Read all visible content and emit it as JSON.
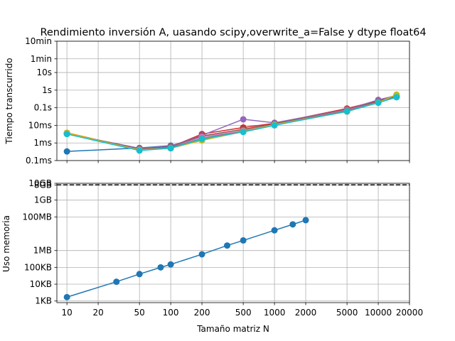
{
  "chart_data": [
    {
      "type": "line",
      "title": "Rendimiento inversión A, uasando scipy,overwrite_a=False y dtype float64",
      "xlabel": "",
      "ylabel": "Tiempo transcurrido",
      "xscale": "log",
      "yscale": "log",
      "xlim": [
        8,
        20000
      ],
      "ylim": [
        0.0001,
        600
      ],
      "grid": true,
      "yticks": [
        {
          "value": 0.0001,
          "label": "0.1ms"
        },
        {
          "value": 0.001,
          "label": "1ms"
        },
        {
          "value": 0.01,
          "label": "10ms"
        },
        {
          "value": 0.1,
          "label": "0.1s"
        },
        {
          "value": 1,
          "label": "1s"
        },
        {
          "value": 10,
          "label": "10s"
        },
        {
          "value": 60,
          "label": "1min"
        },
        {
          "value": 600,
          "label": "10min"
        }
      ],
      "series": [
        {
          "color": "#1f77b4",
          "points": [
            [
              10,
              0.00033
            ],
            [
              50,
              0.00052
            ],
            [
              100,
              0.0007
            ],
            [
              200,
              0.0022
            ],
            [
              500,
              0.0045
            ],
            [
              1000,
              0.012
            ],
            [
              5000,
              0.075
            ],
            [
              10000,
              0.2
            ],
            [
              15000,
              0.42
            ]
          ]
        },
        {
          "color": "#ff7f0e",
          "points": [
            [
              10,
              0.0038
            ],
            [
              50,
              0.00042
            ],
            [
              100,
              0.00055
            ],
            [
              200,
              0.0014
            ],
            [
              500,
              0.0055
            ],
            [
              1000,
              0.011
            ],
            [
              5000,
              0.07
            ],
            [
              10000,
              0.22
            ],
            [
              15000,
              0.55
            ]
          ]
        },
        {
          "color": "#2ca02c",
          "points": [
            [
              10,
              0.0035
            ],
            [
              50,
              0.0004
            ],
            [
              100,
              0.0005
            ],
            [
              200,
              0.0016
            ],
            [
              500,
              0.0048
            ],
            [
              1000,
              0.011
            ],
            [
              5000,
              0.065
            ],
            [
              10000,
              0.2
            ],
            [
              15000,
              0.45
            ]
          ]
        },
        {
          "color": "#d62728",
          "points": [
            [
              10,
              0.0034
            ],
            [
              50,
              0.00045
            ],
            [
              100,
              0.0006
            ],
            [
              200,
              0.0032
            ],
            [
              500,
              0.0075
            ],
            [
              1000,
              0.013
            ],
            [
              5000,
              0.09
            ],
            [
              10000,
              0.25
            ],
            [
              15000,
              0.45
            ]
          ]
        },
        {
          "color": "#9467bd",
          "points": [
            [
              10,
              0.0033
            ],
            [
              50,
              0.0005
            ],
            [
              100,
              0.00065
            ],
            [
              200,
              0.0027
            ],
            [
              500,
              0.022
            ],
            [
              1000,
              0.014
            ],
            [
              5000,
              0.08
            ],
            [
              10000,
              0.28
            ],
            [
              15000,
              0.5
            ]
          ]
        },
        {
          "color": "#8c564b",
          "points": [
            [
              10,
              0.0034
            ],
            [
              50,
              0.00045
            ],
            [
              100,
              0.0006
            ],
            [
              200,
              0.0025
            ],
            [
              500,
              0.006
            ],
            [
              1000,
              0.012
            ],
            [
              5000,
              0.08
            ],
            [
              10000,
              0.22
            ],
            [
              15000,
              0.42
            ]
          ]
        },
        {
          "color": "#e377c2",
          "points": [
            [
              10,
              0.0033
            ],
            [
              50,
              0.00042
            ],
            [
              100,
              0.00055
            ],
            [
              200,
              0.0022
            ],
            [
              500,
              0.005
            ],
            [
              1000,
              0.011
            ],
            [
              5000,
              0.075
            ],
            [
              10000,
              0.2
            ],
            [
              15000,
              0.4
            ]
          ]
        },
        {
          "color": "#7f7f7f",
          "points": [
            [
              10,
              0.0033
            ],
            [
              50,
              0.00041
            ],
            [
              100,
              0.00055
            ],
            [
              200,
              0.0018
            ],
            [
              500,
              0.0045
            ],
            [
              1000,
              0.011
            ],
            [
              5000,
              0.07
            ],
            [
              10000,
              0.2
            ],
            [
              15000,
              0.4
            ]
          ]
        },
        {
          "color": "#bcbd22",
          "points": [
            [
              10,
              0.0036
            ],
            [
              50,
              0.0004
            ],
            [
              100,
              0.0005
            ],
            [
              200,
              0.0014
            ],
            [
              500,
              0.0044
            ],
            [
              1000,
              0.011
            ],
            [
              5000,
              0.06
            ],
            [
              10000,
              0.2
            ],
            [
              15000,
              0.55
            ]
          ]
        },
        {
          "color": "#17becf",
          "points": [
            [
              10,
              0.0032
            ],
            [
              50,
              0.00037
            ],
            [
              100,
              0.0005
            ],
            [
              200,
              0.0017
            ],
            [
              500,
              0.0042
            ],
            [
              1000,
              0.01
            ],
            [
              5000,
              0.062
            ],
            [
              10000,
              0.19
            ],
            [
              15000,
              0.4
            ]
          ]
        }
      ]
    },
    {
      "type": "line",
      "title": "",
      "xlabel": "Tamaño matriz N",
      "ylabel": "Uso memoria",
      "xscale": "log",
      "yscale": "log",
      "xlim": [
        8,
        20000
      ],
      "ylim": [
        800,
        10000000000
      ],
      "grid": true,
      "xticks": [
        {
          "value": 10,
          "label": "10"
        },
        {
          "value": 20,
          "label": "20"
        },
        {
          "value": 50,
          "label": "50"
        },
        {
          "value": 100,
          "label": "100"
        },
        {
          "value": 200,
          "label": "200"
        },
        {
          "value": 500,
          "label": "500"
        },
        {
          "value": 1000,
          "label": "1000"
        },
        {
          "value": 2000,
          "label": "2000"
        },
        {
          "value": 5000,
          "label": "5000"
        },
        {
          "value": 10000,
          "label": "10000"
        },
        {
          "value": 20000,
          "label": "20000"
        }
      ],
      "yticks": [
        {
          "value": 1000,
          "label": "1KB"
        },
        {
          "value": 10000,
          "label": "10KB"
        },
        {
          "value": 100000,
          "label": "100KB"
        },
        {
          "value": 1000000,
          "label": "1MB"
        },
        {
          "value": 100000000,
          "label": "100MB"
        },
        {
          "value": 1000000000,
          "label": "1GB"
        },
        {
          "value": 8000000000,
          "label": "8GB"
        },
        {
          "value": 10000000000,
          "label": "10GB"
        }
      ],
      "reference_line": {
        "value": 8000000000,
        "style": "dashed",
        "color": "#000000"
      },
      "series": [
        {
          "color": "#1f77b4",
          "points": [
            [
              10,
              1700
            ],
            [
              30,
              14000
            ],
            [
              50,
              40000
            ],
            [
              80,
              100000
            ],
            [
              100,
              150000
            ],
            [
              200,
              600000
            ],
            [
              350,
              2000000
            ],
            [
              500,
              4000000
            ],
            [
              1000,
              16000000
            ],
            [
              1500,
              36000000
            ],
            [
              2000,
              64000000
            ]
          ]
        }
      ]
    }
  ]
}
